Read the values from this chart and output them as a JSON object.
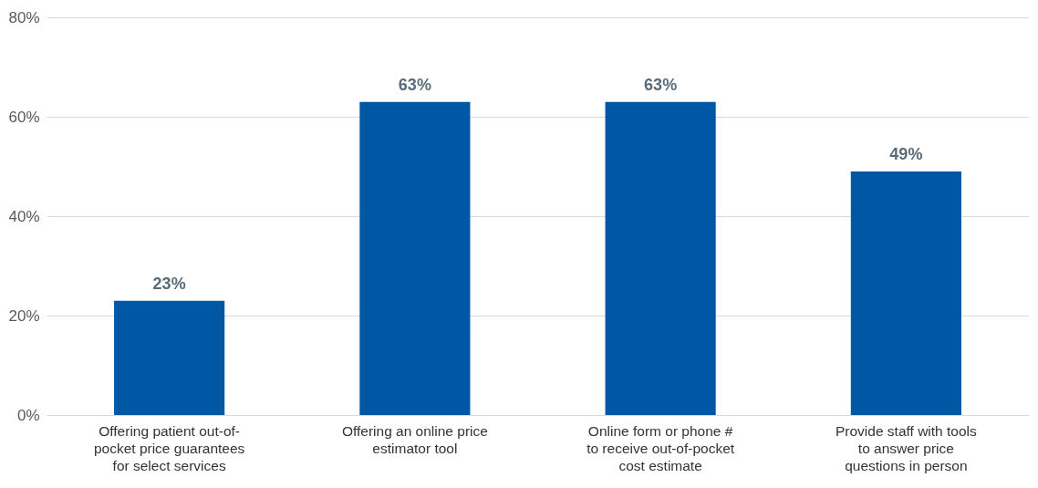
{
  "chart_data": {
    "type": "bar",
    "categories": [
      "Offering patient out-of-pocket price guarantees for select services",
      "Offering an online price estimator tool",
      "Online form or phone # to receive out-of-pocket cost estimate",
      "Provide staff with tools to answer price questions in person"
    ],
    "values": [
      23,
      63,
      63,
      49
    ],
    "color": "#0057a3",
    "value_labels": [
      "23%",
      "63%",
      "63%",
      "49%"
    ],
    "ylim": [
      0,
      80
    ],
    "yticks": [
      {
        "value": 0,
        "label": "0%"
      },
      {
        "value": 20,
        "label": "20%"
      },
      {
        "value": 40,
        "label": "40%"
      },
      {
        "value": 60,
        "label": "60%"
      },
      {
        "value": 80,
        "label": "80%"
      }
    ],
    "grid": "y"
  }
}
